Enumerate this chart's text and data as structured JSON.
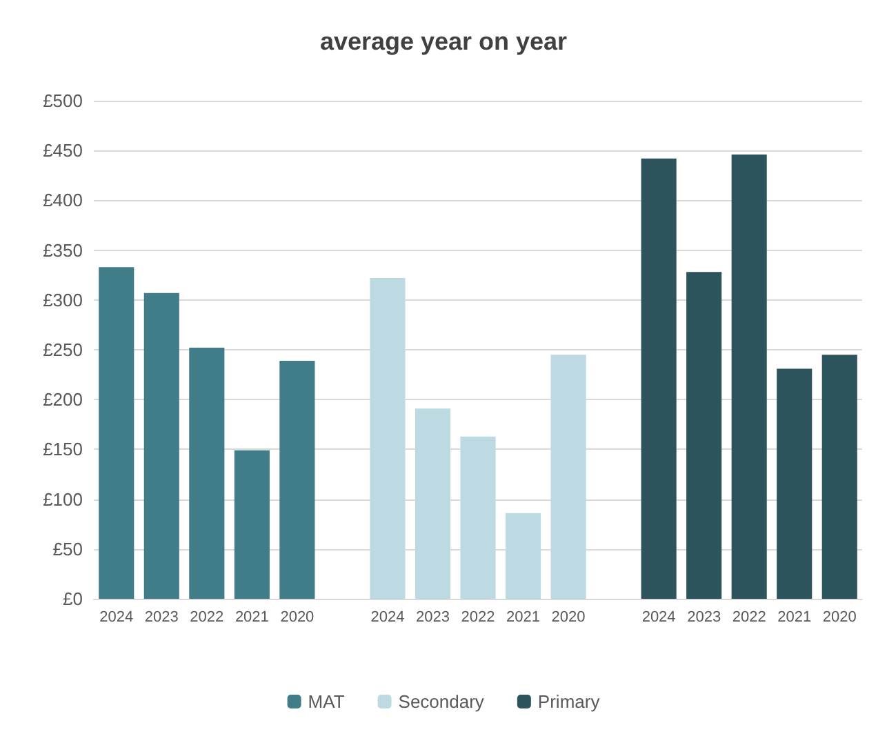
{
  "chart_data": {
    "type": "bar",
    "title": "average year on year",
    "stacked": true,
    "categories": [
      "2024",
      "2023",
      "2022",
      "2021",
      "2020",
      null,
      "2024",
      "2023",
      "2022",
      "2021",
      "2020",
      null,
      "2024",
      "2023",
      "2022",
      "2021",
      "2020"
    ],
    "series": [
      {
        "name": "MAT",
        "color": "#417c89",
        "values": [
          333,
          307,
          252,
          149,
          239,
          null,
          null,
          null,
          null,
          null,
          null,
          null,
          null,
          null,
          null,
          null,
          null
        ]
      },
      {
        "name": "Secondary",
        "color": "#bdd9e1",
        "values": [
          null,
          null,
          null,
          null,
          null,
          null,
          322,
          191,
          163,
          86,
          245,
          null,
          null,
          null,
          null,
          null,
          null
        ]
      },
      {
        "name": "Primary",
        "color": "#2d535c",
        "values": [
          null,
          null,
          null,
          null,
          null,
          null,
          null,
          null,
          null,
          null,
          null,
          null,
          442,
          328,
          446,
          231,
          245
        ]
      }
    ],
    "ylim": [
      0,
      500
    ],
    "yticks": [
      {
        "value": 0,
        "label": "£0"
      },
      {
        "value": 50,
        "label": "£50"
      },
      {
        "value": 100,
        "label": "£100"
      },
      {
        "value": 150,
        "label": "£150"
      },
      {
        "value": 200,
        "label": "£200"
      },
      {
        "value": 250,
        "label": "£250"
      },
      {
        "value": 300,
        "label": "£300"
      },
      {
        "value": 350,
        "label": "£350"
      },
      {
        "value": 400,
        "label": "£400"
      },
      {
        "value": 450,
        "label": "£450"
      },
      {
        "value": 500,
        "label": "£500"
      }
    ],
    "grid": "y",
    "legend": "bottom"
  }
}
